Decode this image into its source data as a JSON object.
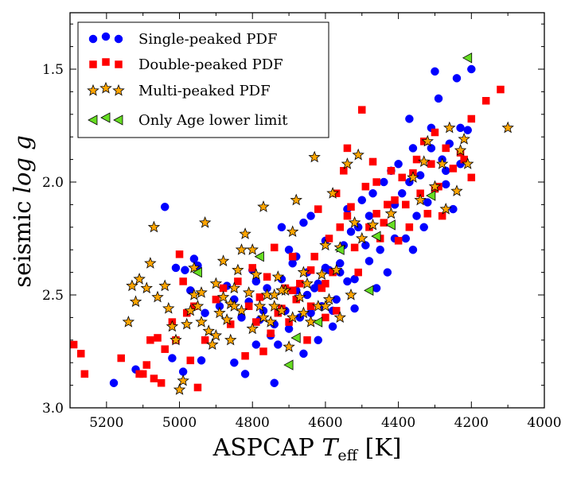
{
  "chart_data": {
    "type": "scatter",
    "title": "",
    "xlabel": {
      "main": "ASPCAP ",
      "var": "T",
      "sub": "eff",
      "unit": " [K]"
    },
    "ylabel": {
      "main": "seismic ",
      "var": "log g"
    },
    "xlim": [
      5300,
      4000
    ],
    "ylim": [
      3.0,
      1.25
    ],
    "xticks": [
      5200,
      5000,
      4800,
      4600,
      4400,
      4200,
      4000
    ],
    "yticks": [
      1.5,
      2.0,
      2.5,
      3.0
    ],
    "xtick_labels": [
      "5200",
      "5000",
      "4800",
      "4600",
      "4400",
      "4200",
      "4000"
    ],
    "ytick_labels": [
      "1.5",
      "2.0",
      "2.5",
      "3.0"
    ],
    "legend_position": "top-left",
    "colors": {
      "single": "#0000ff",
      "double": "#ff0000",
      "multi": "#ffa500",
      "limit": "#66dd22"
    },
    "series": [
      {
        "name": "Single-peaked PDF",
        "marker": "circle",
        "color": "#0000ff",
        "points": [
          [
            5180,
            2.89
          ],
          [
            5120,
            2.83
          ],
          [
            5040,
            2.11
          ],
          [
            5020,
            2.78
          ],
          [
            5010,
            2.38
          ],
          [
            4990,
            2.84
          ],
          [
            4985,
            2.39
          ],
          [
            4970,
            2.48
          ],
          [
            4960,
            2.34
          ],
          [
            4950,
            2.37
          ],
          [
            4940,
            2.79
          ],
          [
            4930,
            2.58
          ],
          [
            4890,
            2.55
          ],
          [
            4870,
            2.46
          ],
          [
            4850,
            2.52
          ],
          [
            4830,
            2.6
          ],
          [
            4820,
            2.85
          ],
          [
            4810,
            2.53
          ],
          [
            4790,
            2.72
          ],
          [
            4790,
            2.44
          ],
          [
            4780,
            2.61
          ],
          [
            4770,
            2.57
          ],
          [
            4760,
            2.47
          ],
          [
            4750,
            2.68
          ],
          [
            4740,
            2.89
          ],
          [
            4730,
            2.72
          ],
          [
            4720,
            2.43
          ],
          [
            4710,
            2.57
          ],
          [
            4700,
            2.3
          ],
          [
            4690,
            2.36
          ],
          [
            4680,
            2.48
          ],
          [
            4670,
            2.6
          ],
          [
            4660,
            2.18
          ],
          [
            4650,
            2.4
          ],
          [
            4640,
            2.58
          ],
          [
            4630,
            2.47
          ],
          [
            4620,
            2.7
          ],
          [
            4610,
            2.55
          ],
          [
            4600,
            2.26
          ],
          [
            4590,
            2.39
          ],
          [
            4580,
            2.57
          ],
          [
            4570,
            2.52
          ],
          [
            4560,
            2.4
          ],
          [
            4550,
            2.28
          ],
          [
            4540,
            2.12
          ],
          [
            4530,
            2.22
          ],
          [
            4520,
            2.43
          ],
          [
            4510,
            2.2
          ],
          [
            4500,
            2.08
          ],
          [
            4480,
            2.15
          ],
          [
            4460,
            2.47
          ],
          [
            4450,
            2.3
          ],
          [
            4440,
            2.0
          ],
          [
            4420,
            1.95
          ],
          [
            4410,
            2.1
          ],
          [
            4400,
            1.92
          ],
          [
            4390,
            2.05
          ],
          [
            4380,
            2.25
          ],
          [
            4370,
            1.72
          ],
          [
            4360,
            1.85
          ],
          [
            4350,
            2.15
          ],
          [
            4340,
            1.97
          ],
          [
            4320,
            2.09
          ],
          [
            4310,
            1.76
          ],
          [
            4300,
            1.51
          ],
          [
            4290,
            1.63
          ],
          [
            4280,
            1.9
          ],
          [
            4270,
            2.01
          ],
          [
            4260,
            1.83
          ],
          [
            4250,
            2.12
          ],
          [
            4240,
            1.54
          ],
          [
            4230,
            1.92
          ],
          [
            4210,
            1.77
          ],
          [
            4200,
            1.5
          ],
          [
            4660,
            2.76
          ],
          [
            4740,
            2.63
          ],
          [
            4800,
            2.39
          ],
          [
            4720,
            2.2
          ],
          [
            4680,
            2.33
          ],
          [
            4620,
            2.45
          ],
          [
            4580,
            2.64
          ],
          [
            4540,
            2.44
          ],
          [
            4490,
            2.28
          ],
          [
            4470,
            2.05
          ],
          [
            4430,
            2.4
          ],
          [
            4370,
            2.0
          ],
          [
            4330,
            2.2
          ],
          [
            4600,
            2.38
          ],
          [
            4650,
            2.5
          ],
          [
            4700,
            2.65
          ],
          [
            4850,
            2.8
          ],
          [
            4640,
            2.15
          ],
          [
            4560,
            2.36
          ],
          [
            4520,
            2.56
          ],
          [
            4480,
            2.35
          ],
          [
            4410,
            2.25
          ],
          [
            4360,
            2.3
          ],
          [
            4310,
            1.85
          ],
          [
            4270,
            1.95
          ],
          [
            4230,
            1.76
          ]
        ]
      },
      {
        "name": "Double-peaked PDF",
        "marker": "square",
        "color": "#ff0000",
        "points": [
          [
            5290,
            2.72
          ],
          [
            5270,
            2.76
          ],
          [
            5260,
            2.85
          ],
          [
            5160,
            2.78
          ],
          [
            5110,
            2.85
          ],
          [
            5100,
            2.85
          ],
          [
            5090,
            2.81
          ],
          [
            5080,
            2.7
          ],
          [
            5070,
            2.87
          ],
          [
            5060,
            2.69
          ],
          [
            5050,
            2.89
          ],
          [
            5040,
            2.74
          ],
          [
            5020,
            2.62
          ],
          [
            5010,
            2.7
          ],
          [
            5000,
            2.32
          ],
          [
            4990,
            2.44
          ],
          [
            4980,
            2.58
          ],
          [
            4970,
            2.79
          ],
          [
            4960,
            2.55
          ],
          [
            4950,
            2.91
          ],
          [
            4930,
            2.7
          ],
          [
            4900,
            2.52
          ],
          [
            4880,
            2.47
          ],
          [
            4860,
            2.63
          ],
          [
            4840,
            2.44
          ],
          [
            4820,
            2.77
          ],
          [
            4810,
            2.55
          ],
          [
            4800,
            2.38
          ],
          [
            4790,
            2.62
          ],
          [
            4780,
            2.51
          ],
          [
            4760,
            2.42
          ],
          [
            4750,
            2.67
          ],
          [
            4740,
            2.29
          ],
          [
            4730,
            2.58
          ],
          [
            4720,
            2.56
          ],
          [
            4710,
            2.47
          ],
          [
            4700,
            2.62
          ],
          [
            4690,
            2.33
          ],
          [
            4680,
            2.52
          ],
          [
            4670,
            2.45
          ],
          [
            4650,
            2.7
          ],
          [
            4640,
            2.39
          ],
          [
            4630,
            2.33
          ],
          [
            4620,
            2.12
          ],
          [
            4610,
            2.47
          ],
          [
            4600,
            2.6
          ],
          [
            4590,
            2.25
          ],
          [
            4580,
            2.4
          ],
          [
            4570,
            2.05
          ],
          [
            4560,
            2.2
          ],
          [
            4550,
            1.95
          ],
          [
            4540,
            1.85
          ],
          [
            4530,
            2.11
          ],
          [
            4520,
            2.29
          ],
          [
            4510,
            2.4
          ],
          [
            4500,
            1.68
          ],
          [
            4490,
            2.02
          ],
          [
            4480,
            2.2
          ],
          [
            4470,
            1.91
          ],
          [
            4460,
            2.14
          ],
          [
            4450,
            2.25
          ],
          [
            4440,
            2.18
          ],
          [
            4420,
            1.95
          ],
          [
            4410,
            2.08
          ],
          [
            4400,
            2.26
          ],
          [
            4390,
            1.98
          ],
          [
            4380,
            2.1
          ],
          [
            4370,
            2.2
          ],
          [
            4350,
            1.9
          ],
          [
            4340,
            2.05
          ],
          [
            4330,
            1.82
          ],
          [
            4320,
            2.14
          ],
          [
            4310,
            1.92
          ],
          [
            4300,
            1.78
          ],
          [
            4290,
            2.02
          ],
          [
            4280,
            2.15
          ],
          [
            4270,
            1.85
          ],
          [
            4250,
            1.94
          ],
          [
            4230,
            1.87
          ],
          [
            4200,
            1.98
          ],
          [
            4200,
            1.72
          ],
          [
            4160,
            1.64
          ],
          [
            4120,
            1.59
          ],
          [
            4570,
            2.57
          ],
          [
            4640,
            2.55
          ],
          [
            4690,
            2.48
          ],
          [
            4770,
            2.75
          ],
          [
            4600,
            2.45
          ],
          [
            4540,
            2.15
          ],
          [
            4460,
            2.0
          ],
          [
            4430,
            2.1
          ],
          [
            4360,
            1.96
          ],
          [
            4300,
            2.03
          ],
          [
            4220,
            1.9
          ]
        ]
      },
      {
        "name": "Multi-peaked PDF",
        "marker": "star",
        "color": "#ffa500",
        "points": [
          [
            5140,
            2.62
          ],
          [
            5130,
            2.46
          ],
          [
            5120,
            2.53
          ],
          [
            5110,
            2.43
          ],
          [
            5090,
            2.47
          ],
          [
            5080,
            2.36
          ],
          [
            5070,
            2.2
          ],
          [
            5060,
            2.51
          ],
          [
            5040,
            2.46
          ],
          [
            5030,
            2.56
          ],
          [
            5020,
            2.64
          ],
          [
            5010,
            2.7
          ],
          [
            5000,
            2.92
          ],
          [
            4990,
            2.88
          ],
          [
            4980,
            2.63
          ],
          [
            4970,
            2.57
          ],
          [
            4960,
            2.38
          ],
          [
            4950,
            2.55
          ],
          [
            4940,
            2.49
          ],
          [
            4930,
            2.18
          ],
          [
            4920,
            2.66
          ],
          [
            4910,
            2.72
          ],
          [
            4900,
            2.45
          ],
          [
            4890,
            2.58
          ],
          [
            4880,
            2.51
          ],
          [
            4870,
            2.61
          ],
          [
            4860,
            2.54
          ],
          [
            4850,
            2.47
          ],
          [
            4840,
            2.39
          ],
          [
            4830,
            2.57
          ],
          [
            4820,
            2.23
          ],
          [
            4810,
            2.49
          ],
          [
            4800,
            2.65
          ],
          [
            4790,
            2.41
          ],
          [
            4780,
            2.55
          ],
          [
            4770,
            2.11
          ],
          [
            4760,
            2.5
          ],
          [
            4750,
            2.62
          ],
          [
            4740,
            2.55
          ],
          [
            4730,
            2.42
          ],
          [
            4720,
            2.57
          ],
          [
            4710,
            2.48
          ],
          [
            4700,
            2.73
          ],
          [
            4690,
            2.22
          ],
          [
            4680,
            2.08
          ],
          [
            4670,
            2.51
          ],
          [
            4660,
            2.58
          ],
          [
            4650,
            2.45
          ],
          [
            4640,
            2.62
          ],
          [
            4630,
            1.89
          ],
          [
            4620,
            2.55
          ],
          [
            4610,
            2.41
          ],
          [
            4600,
            2.28
          ],
          [
            4590,
            2.52
          ],
          [
            4580,
            2.05
          ],
          [
            4570,
            2.39
          ],
          [
            4560,
            2.29
          ],
          [
            4540,
            1.92
          ],
          [
            4520,
            2.18
          ],
          [
            4510,
            1.88
          ],
          [
            4500,
            2.25
          ],
          [
            4470,
            2.19
          ],
          [
            4420,
            2.14
          ],
          [
            4360,
            1.98
          ],
          [
            4340,
            2.08
          ],
          [
            4330,
            1.91
          ],
          [
            4320,
            1.82
          ],
          [
            4300,
            2.02
          ],
          [
            4280,
            1.92
          ],
          [
            4270,
            2.12
          ],
          [
            4260,
            1.76
          ],
          [
            4240,
            2.04
          ],
          [
            4230,
            1.86
          ],
          [
            4220,
            1.81
          ],
          [
            4210,
            1.92
          ],
          [
            4100,
            1.76
          ],
          [
            4880,
            2.35
          ],
          [
            4860,
            2.7
          ],
          [
            4830,
            2.3
          ],
          [
            4800,
            2.3
          ],
          [
            4770,
            2.6
          ],
          [
            4740,
            2.5
          ],
          [
            4720,
            2.48
          ],
          [
            4690,
            2.6
          ],
          [
            4660,
            2.4
          ],
          [
            4600,
            2.55
          ],
          [
            4560,
            2.6
          ],
          [
            4530,
            2.5
          ],
          [
            4900,
            2.68
          ],
          [
            4940,
            2.62
          ],
          [
            4960,
            2.5
          ],
          [
            4850,
            2.55
          ]
        ]
      },
      {
        "name": "Only Age lower limit",
        "marker": "triangle-left",
        "color": "#66dd22",
        "points": [
          [
            4950,
            2.4
          ],
          [
            4780,
            2.33
          ],
          [
            4700,
            2.81
          ],
          [
            4680,
            2.69
          ],
          [
            4620,
            2.62
          ],
          [
            4560,
            2.3
          ],
          [
            4480,
            2.48
          ],
          [
            4460,
            2.24
          ],
          [
            4420,
            2.19
          ],
          [
            4310,
            2.06
          ],
          [
            4210,
            1.45
          ]
        ]
      }
    ]
  }
}
